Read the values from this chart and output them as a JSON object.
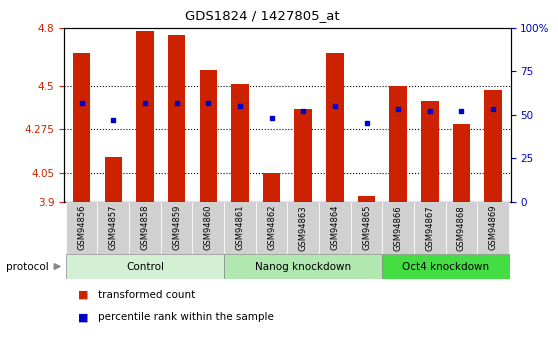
{
  "title": "GDS1824 / 1427805_at",
  "samples": [
    "GSM94856",
    "GSM94857",
    "GSM94858",
    "GSM94859",
    "GSM94860",
    "GSM94861",
    "GSM94862",
    "GSM94863",
    "GSM94864",
    "GSM94865",
    "GSM94866",
    "GSM94867",
    "GSM94868",
    "GSM94869"
  ],
  "transformed_count": [
    4.67,
    4.13,
    4.78,
    4.76,
    4.58,
    4.51,
    4.05,
    4.38,
    4.67,
    3.93,
    4.5,
    4.42,
    4.3,
    4.48
  ],
  "percentile_rank": [
    57,
    47,
    57,
    57,
    57,
    55,
    48,
    52,
    55,
    45,
    53,
    52,
    52,
    53
  ],
  "ymin": 3.9,
  "ymax": 4.8,
  "yticks": [
    3.9,
    4.05,
    4.275,
    4.5,
    4.8
  ],
  "ytick_labels": [
    "3.9",
    "4.05",
    "4.275",
    "4.5",
    "4.8"
  ],
  "right_yticks": [
    0,
    25,
    50,
    75,
    100
  ],
  "right_ytick_labels": [
    "0",
    "25",
    "50",
    "75",
    "100%"
  ],
  "groups": [
    {
      "label": "Control",
      "start": 0,
      "end": 4,
      "color": "#d4f0d4"
    },
    {
      "label": "Nanog knockdown",
      "start": 5,
      "end": 9,
      "color": "#b0e8b0"
    },
    {
      "label": "Oct4 knockdown",
      "start": 10,
      "end": 13,
      "color": "#44dd44"
    }
  ],
  "bar_color": "#cc2200",
  "dot_color": "#0000cc",
  "bar_width": 0.55,
  "plot_bg": "#ffffff",
  "tick_color_left": "#cc2200",
  "tick_color_right": "#0000cc",
  "xticklabel_bg": "#d0d0d0"
}
